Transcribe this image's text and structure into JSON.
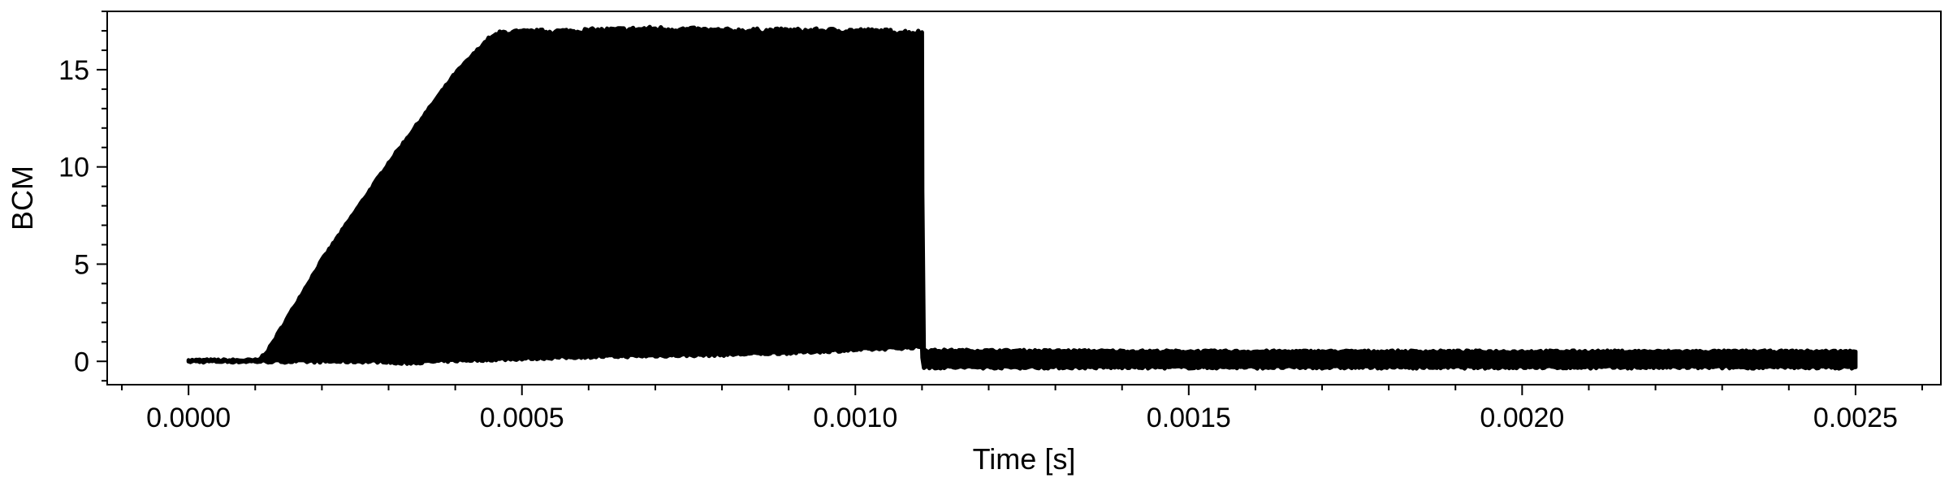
{
  "chart_data": {
    "type": "line",
    "title": "",
    "xlabel": "Time [s]",
    "ylabel": "BCM",
    "xlim": [
      -0.000122,
      0.002628
    ],
    "ylim": [
      -1.2,
      18.0
    ],
    "x_ticks": [
      0.0,
      0.0005,
      0.001,
      0.0015,
      0.002,
      0.0025
    ],
    "x_tick_labels": [
      "0.0000",
      "0.0005",
      "0.0010",
      "0.0015",
      "0.0020",
      "0.0025"
    ],
    "y_ticks": [
      0,
      5,
      10,
      15
    ],
    "y_tick_labels": [
      "0",
      "5",
      "10",
      "15"
    ],
    "grid": false,
    "legend": "none",
    "series": [
      {
        "color": "#000000",
        "upper_envelope": {
          "x": [
            0.0,
            0.000105,
            0.00012,
            0.0002,
            0.0003,
            0.0004,
            0.00045,
            0.00047,
            0.0006,
            0.0007,
            0.0008,
            0.0009,
            0.001,
            0.0011,
            0.001101,
            0.0015,
            0.002,
            0.0025
          ],
          "y": [
            0.05,
            0.05,
            0.6,
            5.2,
            10.2,
            14.8,
            16.6,
            16.9,
            17.0,
            17.1,
            17.0,
            17.0,
            17.0,
            16.9,
            0.55,
            0.5,
            0.5,
            0.5
          ]
        },
        "lower_envelope": {
          "x": [
            0.0,
            0.0002,
            0.0003,
            0.00031,
            0.0004,
            0.0005,
            0.0006,
            0.0007,
            0.0008,
            0.0009,
            0.001,
            0.0011,
            0.001101,
            0.0015,
            0.002,
            0.0025
          ],
          "y": [
            0.0,
            0.0,
            0.0,
            -0.1,
            0.05,
            0.15,
            0.25,
            0.3,
            0.35,
            0.45,
            0.6,
            0.75,
            -0.3,
            -0.3,
            -0.3,
            -0.3
          ]
        }
      }
    ]
  }
}
